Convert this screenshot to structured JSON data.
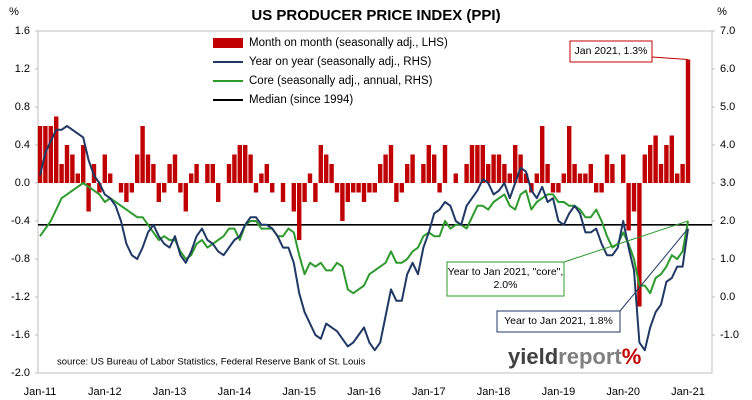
{
  "chart_data": {
    "type": "bar_line_dual",
    "title": "US PRODUCER PRICE INDEX (PPI)",
    "y_unit": "%",
    "y2_unit": "%",
    "source": "source: US Bureau of Labor Statistics, Federal Reserve Bank of St. Louis",
    "logo": {
      "first": "yield",
      "second": "report",
      "mark": "%"
    },
    "legend": "top",
    "categories": [
      "Jan-11",
      null,
      null,
      null,
      null,
      null,
      null,
      null,
      null,
      null,
      null,
      null,
      "Jan-12",
      null,
      null,
      null,
      null,
      null,
      null,
      null,
      null,
      null,
      null,
      null,
      "Jan-13",
      null,
      null,
      null,
      null,
      null,
      null,
      null,
      null,
      null,
      null,
      null,
      "Jan-14",
      null,
      null,
      null,
      null,
      null,
      null,
      null,
      null,
      null,
      null,
      null,
      "Jan-15",
      null,
      null,
      null,
      null,
      null,
      null,
      null,
      null,
      null,
      null,
      null,
      "Jan-16",
      null,
      null,
      null,
      null,
      null,
      null,
      null,
      null,
      null,
      null,
      null,
      "Jan-17",
      null,
      null,
      null,
      null,
      null,
      null,
      null,
      null,
      null,
      null,
      null,
      "Jan-18",
      null,
      null,
      null,
      null,
      null,
      null,
      null,
      null,
      null,
      null,
      null,
      "Jan-19",
      null,
      null,
      null,
      null,
      null,
      null,
      null,
      null,
      null,
      null,
      null,
      "Jan-20",
      null,
      null,
      null,
      null,
      null,
      null,
      null,
      null,
      null,
      null,
      null,
      "Jan-21"
    ],
    "ylim": [
      -2.0,
      1.6
    ],
    "yticks": [
      {
        "value": -2.0,
        "label": "-2.0"
      },
      -1.6,
      -1.2,
      -0.8,
      -0.4,
      {
        "value": 0,
        "label": "0.0"
      },
      0.4,
      0.8,
      1.2,
      1.6
    ],
    "y2lim": [
      -2.0,
      7.0
    ],
    "y2ticks": [
      {
        "value": -1,
        "label": "-1.0"
      },
      {
        "value": 0,
        "label": "0.0"
      },
      {
        "value": 1,
        "label": "1.0"
      },
      {
        "value": 2,
        "label": "2.0"
      },
      {
        "value": 3,
        "label": "3.0"
      },
      {
        "value": 4,
        "label": "4.0"
      },
      {
        "value": 5,
        "label": "5.0"
      },
      {
        "value": 6,
        "label": "6.0"
      },
      {
        "value": 7,
        "label": "7.0"
      }
    ],
    "series": [
      {
        "name": "Month on month (seasonally adj., LHS)",
        "kind": "bar",
        "color": "#c00000",
        "axis": "y",
        "values": [
          0.6,
          0.6,
          0.6,
          0.7,
          0.2,
          0.4,
          0.3,
          0.1,
          0.4,
          -0.3,
          0.2,
          -0.1,
          0.3,
          0.1,
          0.0,
          -0.1,
          -0.2,
          -0.1,
          0.3,
          0.6,
          0.3,
          0.2,
          -0.2,
          -0.1,
          0.2,
          0.3,
          -0.1,
          -0.3,
          0.1,
          0.2,
          0.0,
          0.2,
          0.2,
          -0.2,
          0.0,
          0.2,
          0.3,
          0.4,
          0.4,
          0.3,
          -0.1,
          0.1,
          0.2,
          -0.1,
          0.0,
          -0.2,
          0.0,
          -0.3,
          -0.6,
          -0.2,
          0.1,
          -0.2,
          0.4,
          0.3,
          0.2,
          -0.1,
          -0.4,
          -0.2,
          -0.1,
          -0.1,
          -0.2,
          -0.1,
          -0.1,
          0.2,
          0.3,
          0.4,
          -0.2,
          -0.1,
          0.2,
          0.3,
          0.0,
          0.2,
          0.4,
          0.3,
          -0.1,
          0.4,
          0.0,
          0.1,
          0.0,
          0.2,
          0.4,
          0.4,
          0.4,
          0.2,
          0.3,
          0.3,
          0.2,
          0.1,
          0.4,
          0.3,
          0.1,
          -0.1,
          0.1,
          0.6,
          0.2,
          -0.1,
          -0.1,
          0.1,
          0.6,
          0.2,
          0.1,
          0.1,
          0.2,
          -0.1,
          -0.1,
          0.3,
          0.2,
          0.0,
          0.3,
          -0.5,
          -0.3,
          -1.3,
          0.3,
          0.4,
          0.5,
          0.2,
          0.4,
          0.5,
          0.1,
          0.2,
          1.3
        ]
      },
      {
        "name": "Year on year (seasonally adj., RHS)",
        "kind": "line",
        "color": "#1f3864",
        "axis": "y2",
        "values": [
          3.2,
          3.8,
          4.1,
          4.4,
          4.4,
          4.5,
          4.4,
          4.3,
          4.2,
          3.6,
          3.2,
          3.0,
          2.7,
          2.6,
          2.4,
          2.0,
          1.4,
          1.1,
          1.0,
          1.3,
          1.7,
          1.9,
          1.6,
          1.4,
          1.3,
          1.6,
          1.1,
          0.9,
          1.2,
          1.6,
          1.8,
          1.5,
          1.4,
          1.2,
          1.1,
          1.3,
          1.5,
          1.6,
          1.9,
          2.1,
          2.1,
          1.9,
          1.9,
          1.8,
          1.6,
          1.3,
          1.3,
          0.9,
          0.1,
          -0.4,
          -0.7,
          -1.0,
          -1.1,
          -0.7,
          -0.8,
          -0.9,
          -1.1,
          -1.3,
          -1.2,
          -1.0,
          -0.8,
          -1.2,
          -1.4,
          -1.2,
          -0.5,
          0.2,
          -0.1,
          -0.1,
          0.6,
          0.9,
          0.6,
          1.3,
          1.7,
          2.2,
          2.3,
          2.5,
          2.4,
          2.0,
          1.9,
          2.4,
          2.6,
          2.8,
          3.1,
          3.0,
          2.7,
          2.8,
          3.0,
          2.6,
          3.0,
          3.4,
          3.3,
          2.8,
          2.6,
          2.9,
          2.5,
          2.6,
          2.0,
          1.9,
          2.2,
          2.4,
          2.2,
          1.7,
          1.7,
          1.8,
          1.4,
          1.1,
          1.1,
          1.3,
          2.0,
          1.3,
          0.7,
          -1.2,
          -1.4,
          -0.8,
          -0.4,
          -0.2,
          0.4,
          0.5,
          0.8,
          0.8,
          1.8
        ]
      },
      {
        "name": "Core (seasonally adj., annual, RHS)",
        "kind": "line",
        "color": "#2e9a2e",
        "axis": "y2",
        "values": [
          1.6,
          1.8,
          2.0,
          2.3,
          2.6,
          2.7,
          2.8,
          2.9,
          3.0,
          2.9,
          2.8,
          2.7,
          2.5,
          2.6,
          2.5,
          2.4,
          2.3,
          2.2,
          2.1,
          2.1,
          1.9,
          1.7,
          1.5,
          1.6,
          1.5,
          1.5,
          1.2,
          1.0,
          1.1,
          1.4,
          1.5,
          1.3,
          1.4,
          1.5,
          1.6,
          1.8,
          1.8,
          1.5,
          1.9,
          2.0,
          2.0,
          1.8,
          1.8,
          1.8,
          1.6,
          1.6,
          1.8,
          1.7,
          1.1,
          0.6,
          0.9,
          0.8,
          0.9,
          0.7,
          0.7,
          0.9,
          0.8,
          0.2,
          0.1,
          0.2,
          0.3,
          0.6,
          0.7,
          0.8,
          0.9,
          1.2,
          0.9,
          0.9,
          1.0,
          1.2,
          1.3,
          1.6,
          1.7,
          1.6,
          1.6,
          2.0,
          1.8,
          1.9,
          1.9,
          1.8,
          2.1,
          2.4,
          2.4,
          2.3,
          2.5,
          2.6,
          2.7,
          2.4,
          2.3,
          2.7,
          2.8,
          2.3,
          2.5,
          2.6,
          2.7,
          2.7,
          2.5,
          2.5,
          2.4,
          2.4,
          2.3,
          2.1,
          2.1,
          2.3,
          2.0,
          1.6,
          1.3,
          1.4,
          1.7,
          1.4,
          1.0,
          0.3,
          0.3,
          0.1,
          0.5,
          0.6,
          0.8,
          1.1,
          1.0,
          1.2,
          2.0
        ]
      }
    ],
    "median": {
      "name": "Median (since 1994)",
      "value": 1.9,
      "color": "#000000",
      "axis": "y2"
    },
    "annotations": [
      {
        "lines": [
          "Jan 2021, 1.3%"
        ]
      },
      {
        "lines": [
          "Year to Jan 2021, 1.8%"
        ]
      },
      {
        "lines": [
          "Year to Jan 2021, \"core\",",
          "2.0%"
        ]
      }
    ]
  }
}
